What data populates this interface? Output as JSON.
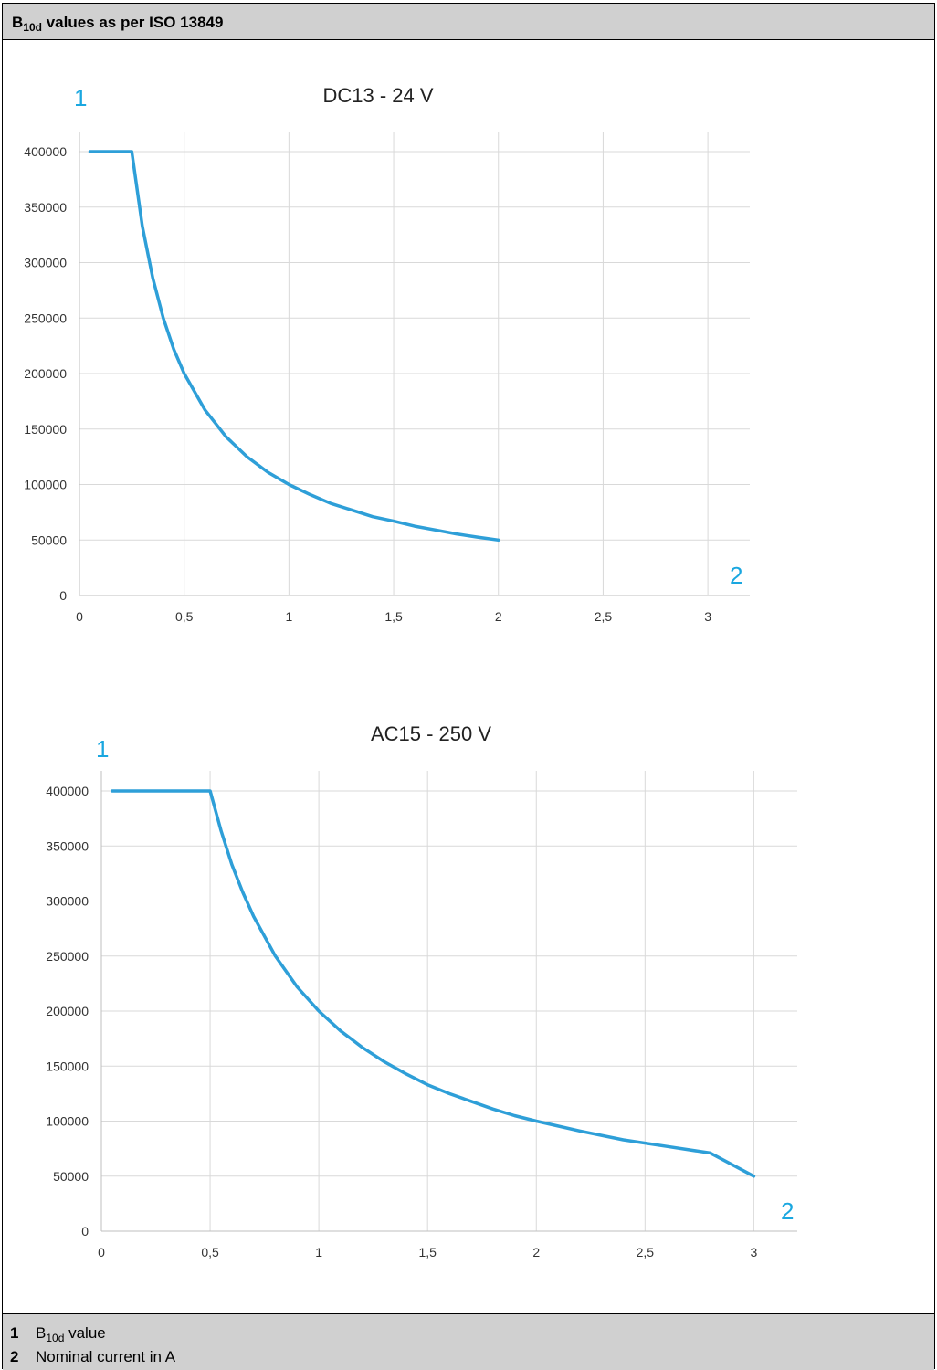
{
  "header": {
    "title_main": "B",
    "title_sub": "10d",
    "title_rest": " values as per ISO 13849"
  },
  "legend": [
    {
      "num": "1",
      "label_main": "B",
      "label_sub": "10d",
      "label_rest": " value"
    },
    {
      "num": "2",
      "label_main": "Nominal current in A",
      "label_sub": "",
      "label_rest": ""
    }
  ],
  "colors": {
    "line": "#2e9fd8",
    "callout": "#1aa7e0",
    "grid": "#d9d9d9",
    "header_bg": "#d0d0d0"
  },
  "chart_data": [
    {
      "type": "line",
      "title": "DC13 - 24 V",
      "callout_y": "1",
      "callout_x": "2",
      "x_ticks": [
        "0",
        "0,5",
        "1",
        "1,5",
        "2",
        "2,5",
        "3"
      ],
      "x_tick_values": [
        0,
        0.5,
        1,
        1.5,
        2,
        2.5,
        3
      ],
      "y_ticks": [
        "0",
        "50000",
        "100000",
        "150000",
        "200000",
        "250000",
        "300000",
        "350000",
        "400000"
      ],
      "y_tick_values": [
        0,
        50000,
        100000,
        150000,
        200000,
        250000,
        300000,
        350000,
        400000
      ],
      "xlim": [
        0,
        3.2
      ],
      "ylim": [
        0,
        400000
      ],
      "grid": true,
      "series": [
        {
          "x": [
            0.05,
            0.25,
            0.3,
            0.35,
            0.4,
            0.45,
            0.5,
            0.6,
            0.7,
            0.8,
            0.9,
            1.0,
            1.1,
            1.2,
            1.3,
            1.4,
            1.5,
            1.6,
            1.7,
            1.8,
            1.9,
            2.0
          ],
          "y": [
            400000,
            400000,
            333000,
            286000,
            250000,
            222000,
            200000,
            167000,
            143000,
            125000,
            111000,
            100000,
            91000,
            83000,
            77000,
            71000,
            67000,
            62500,
            59000,
            55500,
            52600,
            50000
          ]
        }
      ]
    },
    {
      "type": "line",
      "title": "AC15 - 250 V",
      "callout_y": "1",
      "callout_x": "2",
      "x_ticks": [
        "0",
        "0,5",
        "1",
        "1,5",
        "2",
        "2,5",
        "3"
      ],
      "x_tick_values": [
        0,
        0.5,
        1,
        1.5,
        2,
        2.5,
        3
      ],
      "y_ticks": [
        "0",
        "50000",
        "100000",
        "150000",
        "200000",
        "250000",
        "300000",
        "350000",
        "400000"
      ],
      "y_tick_values": [
        0,
        50000,
        100000,
        150000,
        200000,
        250000,
        300000,
        350000,
        400000
      ],
      "xlim": [
        0,
        3.2
      ],
      "ylim": [
        0,
        400000
      ],
      "grid": true,
      "series": [
        {
          "x": [
            0.05,
            0.5,
            0.55,
            0.6,
            0.65,
            0.7,
            0.8,
            0.9,
            1.0,
            1.1,
            1.2,
            1.3,
            1.4,
            1.5,
            1.6,
            1.7,
            1.8,
            1.9,
            2.0,
            2.2,
            2.4,
            2.6,
            2.8,
            3.0
          ],
          "y": [
            400000,
            400000,
            364000,
            333000,
            308000,
            286000,
            250000,
            222000,
            200000,
            182000,
            167000,
            154000,
            143000,
            133000,
            125000,
            118000,
            111000,
            105000,
            100000,
            91000,
            83000,
            77000,
            71000,
            50000
          ]
        }
      ]
    }
  ]
}
